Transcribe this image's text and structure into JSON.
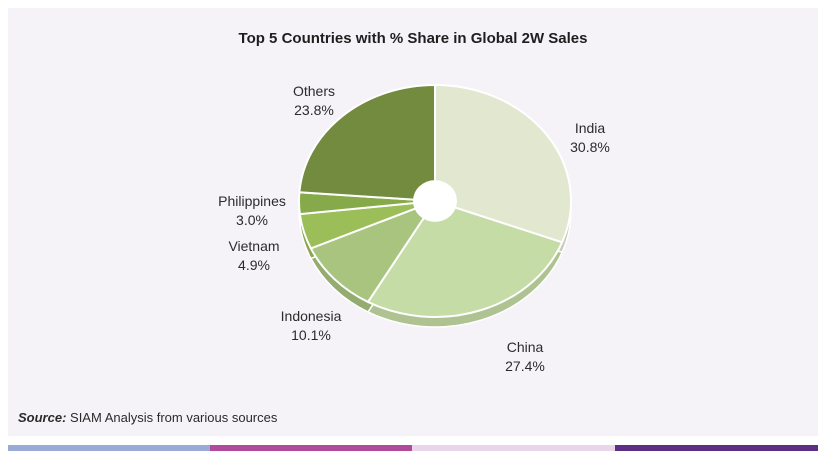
{
  "chart_data": {
    "type": "pie",
    "title": "Top 5 Countries with % Share in Global 2W Sales",
    "slices": [
      {
        "label": "India",
        "value": "30.8%",
        "pct": 30.8,
        "color": "#e1e8cf"
      },
      {
        "label": "China",
        "value": "27.4%",
        "pct": 27.4,
        "color": "#c6dca6"
      },
      {
        "label": "Indonesia",
        "value": "10.1%",
        "pct": 10.1,
        "color": "#a8c47f"
      },
      {
        "label": "Vietnam",
        "value": "4.9%",
        "pct": 4.9,
        "color": "#9bbe59"
      },
      {
        "label": "Philippines",
        "value": "3.0%",
        "pct": 3.0,
        "color": "#86a94a"
      },
      {
        "label": "Others",
        "value": "23.8%",
        "pct": 23.8,
        "color": "#728b3e"
      }
    ]
  },
  "source": {
    "prefix": "Source:",
    "text": " SIAM Analysis from various sources"
  },
  "footer_colors": [
    "#9aaad6",
    "#b04a9a",
    "#e9d6ea",
    "#5c2e86"
  ]
}
